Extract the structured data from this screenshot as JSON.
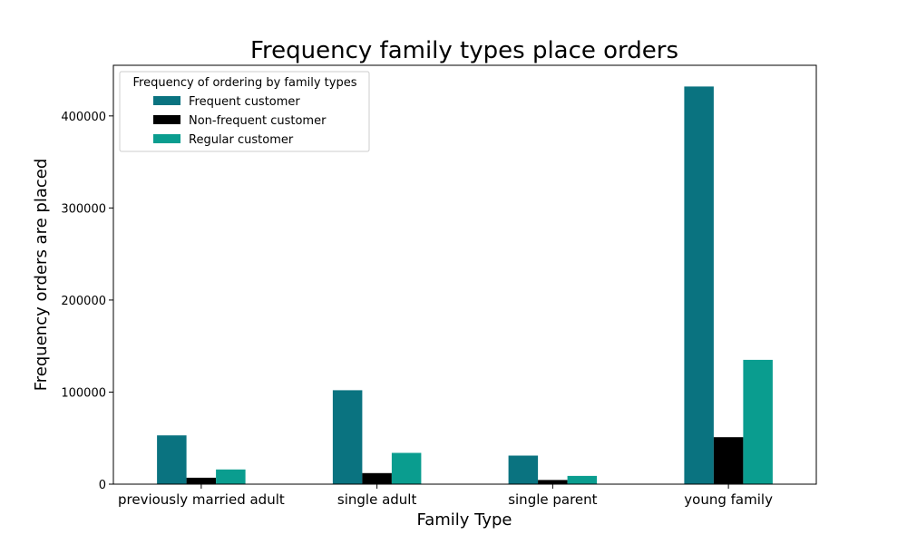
{
  "chart_data": {
    "type": "bar",
    "title": "Frequency family types place orders",
    "xlabel": "Family Type",
    "ylabel": "Frequency orders are placed",
    "categories": [
      "previously married adult",
      "single adult",
      "single parent",
      "young family"
    ],
    "series": [
      {
        "name": "Frequent customer",
        "values": [
          53000,
          102000,
          31000,
          432000
        ],
        "color": "#0a7380"
      },
      {
        "name": "Non-frequent customer",
        "values": [
          7000,
          12000,
          4500,
          51000
        ],
        "color": "#000000"
      },
      {
        "name": "Regular customer",
        "values": [
          16000,
          34000,
          9000,
          135000
        ],
        "color": "#0a9d8f"
      }
    ],
    "ylim": [
      0,
      455000
    ],
    "yticks": [
      0,
      100000,
      200000,
      300000,
      400000
    ],
    "ytick_labels": [
      "0",
      "100000",
      "200000",
      "300000",
      "400000"
    ],
    "legend_title": "Frequency of ordering by family types",
    "legend_position": "top-left",
    "grid": false
  }
}
